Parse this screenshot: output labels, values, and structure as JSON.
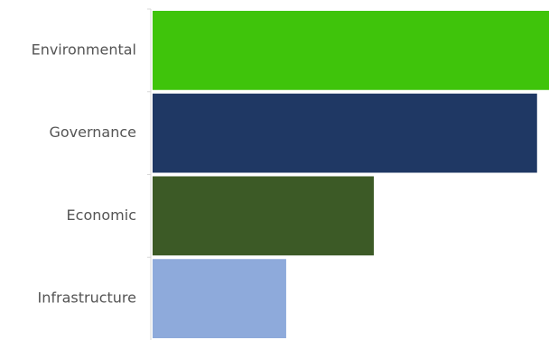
{
  "chart_data": {
    "type": "bar",
    "orientation": "horizontal",
    "title": "",
    "xlabel": "",
    "ylabel": "",
    "categories": [
      "Environmental",
      "Governance",
      "Economic",
      "Infrastructure"
    ],
    "values": [
      100,
      97,
      56,
      34
    ],
    "colors": [
      "#3fc40b",
      "#1f3864",
      "#3c5a26",
      "#8eaadb"
    ],
    "xlim": [
      0,
      100
    ],
    "grid": false,
    "legend": "none"
  }
}
